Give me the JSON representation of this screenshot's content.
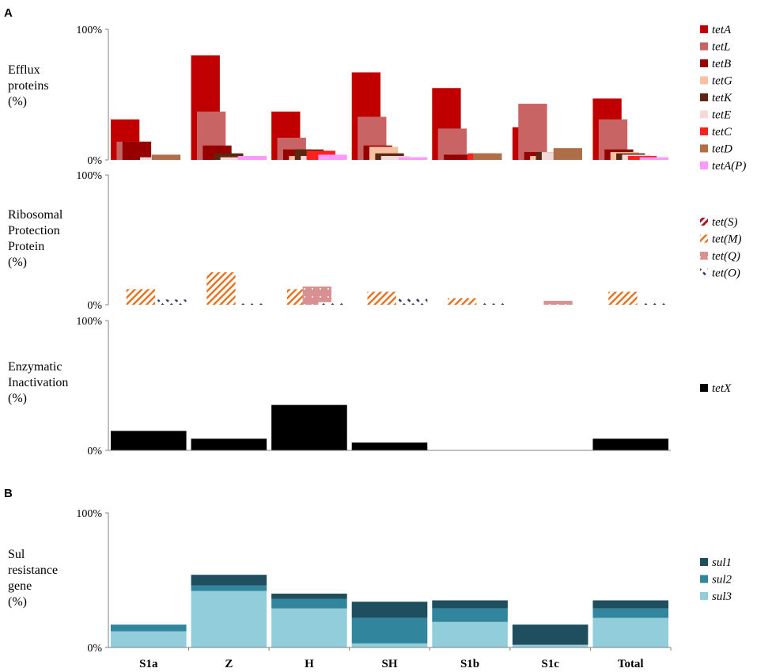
{
  "figure": {
    "panel_a_label": "A",
    "panel_b_label": "B"
  },
  "colors": {
    "tetA": "#c00000",
    "tetL": "#c86464",
    "tetB": "#960000",
    "tetG": "#f8c0a0",
    "tetK": "#5a2810",
    "tetE": "#f3dada",
    "tetC": "#ff2020",
    "tetD": "#b06e48",
    "tetAP": "#ff99ff",
    "tetS": "#b01020",
    "tetM": "#e8701a",
    "tetQ": "#d89090",
    "tetO": "#40306c",
    "tetX": "#000000",
    "sul1": "#1f4e5f",
    "sul2": "#31859c",
    "sul3": "#92cddc"
  },
  "chart_data": [
    {
      "id": "efflux",
      "type": "bar",
      "ylabel_lines": [
        "Efflux",
        "proteins",
        "(%)"
      ],
      "ylim": [
        0,
        100
      ],
      "yticks": [
        "0%",
        "100%"
      ],
      "categories": [
        "S1a",
        "Z",
        "H",
        "SH",
        "S1b",
        "S1c",
        "Total"
      ],
      "series": [
        {
          "key": "tetA",
          "name": "tetA",
          "values": [
            31,
            80,
            37,
            67,
            55,
            25,
            47
          ]
        },
        {
          "key": "tetL",
          "name": "tetL",
          "values": [
            14,
            37,
            17,
            33,
            24,
            43,
            31
          ]
        },
        {
          "key": "tetB",
          "name": "tetB",
          "values": [
            14,
            11,
            8,
            11,
            4,
            6,
            8
          ]
        },
        {
          "key": "tetG",
          "name": "tetG",
          "values": [
            0,
            0,
            3,
            10,
            0,
            3,
            6
          ]
        },
        {
          "key": "tetK",
          "name": "tetK",
          "values": [
            0,
            5,
            8,
            5,
            0,
            6,
            5
          ]
        },
        {
          "key": "tetE",
          "name": "tetE",
          "values": [
            2,
            2,
            3,
            3,
            0,
            6,
            4
          ]
        },
        {
          "key": "tetC",
          "name": "tetC",
          "values": [
            0,
            0,
            7,
            0,
            5,
            0,
            3
          ]
        },
        {
          "key": "tetD",
          "name": "tetD",
          "values": [
            4,
            0,
            0,
            0,
            5,
            9,
            0
          ]
        },
        {
          "key": "tetAP",
          "name": "tetA(P)",
          "values": [
            0,
            3,
            4,
            2,
            0,
            0,
            2
          ]
        }
      ]
    },
    {
      "id": "ribosomal",
      "type": "bar",
      "ylabel_lines": [
        "Ribosomal",
        "Protection",
        "Protein",
        "(%)"
      ],
      "ylim": [
        0,
        100
      ],
      "yticks": [
        "0%",
        "100%"
      ],
      "categories": [
        "S1a",
        "Z",
        "H",
        "SH",
        "S1b",
        "S1c",
        "Total"
      ],
      "series": [
        {
          "key": "tetS",
          "name": "tet(S)",
          "values": [
            0,
            0,
            0,
            0,
            0,
            0,
            0
          ]
        },
        {
          "key": "tetM",
          "name": "tet(M)",
          "values": [
            12,
            25,
            12,
            10,
            5,
            0,
            10
          ]
        },
        {
          "key": "tetQ",
          "name": "tet(Q)",
          "values": [
            0,
            0,
            14,
            0,
            0,
            3,
            0
          ]
        },
        {
          "key": "tetO",
          "name": "tet(O)",
          "values": [
            4,
            1,
            2,
            5,
            2,
            0,
            2
          ]
        }
      ]
    },
    {
      "id": "enzymatic",
      "type": "bar",
      "ylabel_lines": [
        "Enzymatic",
        "Inactivation",
        "(%)"
      ],
      "ylim": [
        0,
        100
      ],
      "yticks": [
        "0%",
        "100%"
      ],
      "categories": [
        "S1a",
        "Z",
        "H",
        "SH",
        "S1b",
        "S1c",
        "Total"
      ],
      "series": [
        {
          "key": "tetX",
          "name": "tetX",
          "values": [
            15,
            9,
            35,
            6,
            0,
            0,
            9
          ]
        }
      ]
    },
    {
      "id": "sul",
      "type": "bar",
      "stacked": true,
      "ylabel_lines": [
        "Sul",
        "resistance",
        "gene",
        "(%)"
      ],
      "ylim": [
        0,
        100
      ],
      "yticks": [
        "0%",
        "100%"
      ],
      "categories": [
        "S1a",
        "Z",
        "H",
        "SH",
        "S1b",
        "S1c",
        "Total"
      ],
      "series": [
        {
          "key": "sul3",
          "name": "sul3",
          "values": [
            12,
            42,
            29,
            3,
            19,
            2,
            22
          ]
        },
        {
          "key": "sul2",
          "name": "sul2",
          "values": [
            5,
            4,
            7,
            19,
            10,
            0,
            7
          ]
        },
        {
          "key": "sul1",
          "name": "sul1",
          "values": [
            0,
            8,
            4,
            12,
            6,
            15,
            6
          ]
        }
      ],
      "legend_order": [
        "sul1",
        "sul2",
        "sul3"
      ]
    }
  ]
}
